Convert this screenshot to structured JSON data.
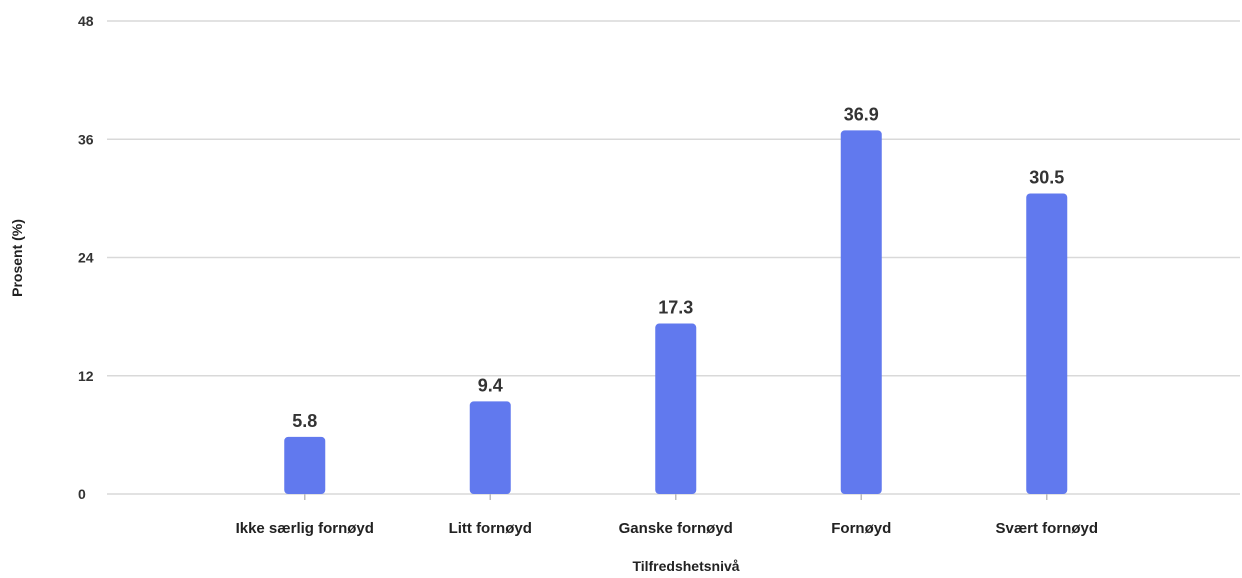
{
  "chart_data": {
    "type": "bar",
    "categories": [
      "Ikke særlig fornøyd",
      "Litt fornøyd",
      "Ganske fornøyd",
      "Fornøyd",
      "Svært fornøyd"
    ],
    "values": [
      5.8,
      9.4,
      17.3,
      36.9,
      30.5
    ],
    "xlabel": "Tilfredshetsnivå",
    "ylabel": "Prosent (%)",
    "ylim": [
      0,
      48
    ],
    "yticks": [
      0,
      12,
      24,
      36,
      48
    ],
    "grid": true,
    "colors": {
      "bar": "#6179ee",
      "grid": "#d9d9d9"
    }
  }
}
